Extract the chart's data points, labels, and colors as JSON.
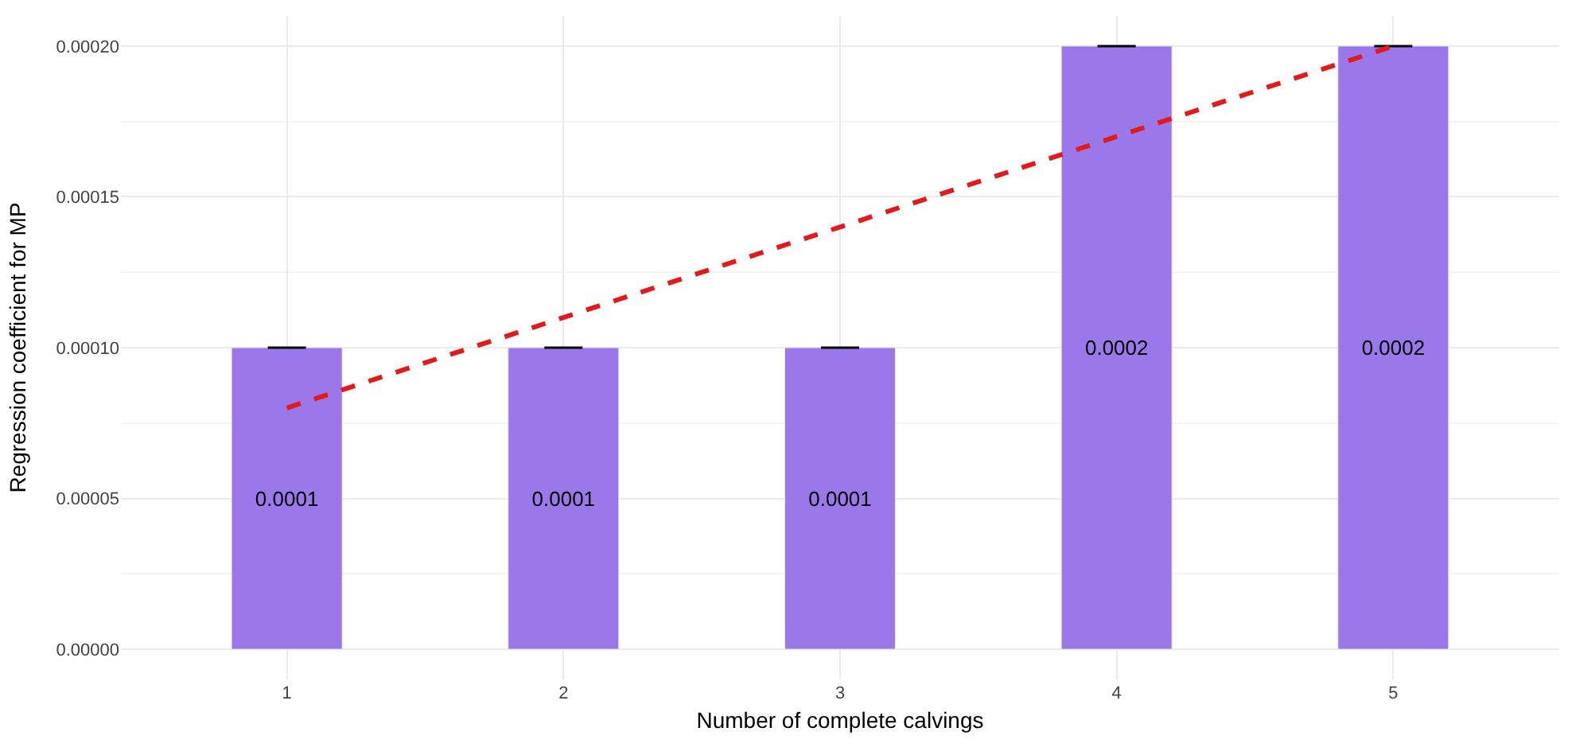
{
  "chart_data": {
    "type": "bar",
    "xlabel": "Number of complete calvings",
    "ylabel": "Regression coefficient for MP",
    "x": [
      1,
      2,
      3,
      4,
      5
    ],
    "series": [
      {
        "color": "#9b78ea",
        "values": [
          0.0001,
          0.0001,
          0.0001,
          0.0002,
          0.0002
        ],
        "errors": [
          0,
          0,
          0,
          0,
          0
        ],
        "value_labels": [
          "0.0001",
          "0.0001",
          "0.0001",
          "0.0002",
          "0.0002"
        ]
      },
      {
        "type": "line",
        "color": "#e31a1c",
        "x": [
          1,
          5
        ],
        "values": [
          8e-05,
          0.0002
        ],
        "line_style": "dashed",
        "marker": "none"
      }
    ],
    "xlim": [
      0.4,
      5.6
    ],
    "xticks": [
      1,
      2,
      3,
      4,
      5
    ],
    "ylim": [
      -1e-05,
      0.00021
    ],
    "yticks": [
      {
        "value": 0,
        "label": "0.00000"
      },
      {
        "value": 5e-05,
        "label": "0.00005"
      },
      {
        "value": 0.0001,
        "label": "0.00010"
      },
      {
        "value": 0.00015,
        "label": "0.00015"
      },
      {
        "value": 0.0002,
        "label": "0.00020"
      }
    ],
    "grid": true
  }
}
